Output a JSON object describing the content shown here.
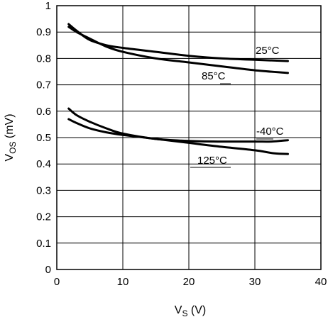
{
  "chart_data": {
    "type": "line",
    "xlabel": {
      "main": "V",
      "sub": "S",
      "unit": " (V)"
    },
    "ylabel": {
      "main": "V",
      "sub": "OS",
      "unit": " (mV)"
    },
    "xlim": [
      0,
      40
    ],
    "ylim": [
      0,
      1
    ],
    "xticks": [
      0,
      10,
      20,
      30,
      40
    ],
    "yticks": [
      0,
      0.1,
      0.2,
      0.3,
      0.4,
      0.5,
      0.6,
      0.7,
      0.8,
      0.9,
      1
    ],
    "ytick_labels": [
      "0",
      "0.1",
      "0.2",
      "0.3",
      "0.4",
      "0.5",
      "0.6",
      "0.7",
      "0.8",
      "0.9",
      "1"
    ],
    "xtick_labels": [
      "0",
      "10",
      "20",
      "30",
      "40"
    ],
    "grid": true,
    "series": [
      {
        "name": "25°C",
        "x": [
          1.8,
          3,
          5,
          7.5,
          10,
          15,
          20,
          25,
          30,
          35
        ],
        "y": [
          0.93,
          0.905,
          0.87,
          0.85,
          0.84,
          0.825,
          0.81,
          0.8,
          0.795,
          0.79
        ]
      },
      {
        "name": "85°C",
        "x": [
          1.8,
          3,
          5,
          7.5,
          10,
          15,
          20,
          25,
          30,
          35
        ],
        "y": [
          0.92,
          0.9,
          0.875,
          0.845,
          0.825,
          0.8,
          0.785,
          0.77,
          0.755,
          0.745
        ]
      },
      {
        "name": "-40°C",
        "x": [
          1.8,
          3,
          5,
          7.5,
          10,
          15,
          20,
          25,
          30,
          32.5,
          35
        ],
        "y": [
          0.61,
          0.585,
          0.56,
          0.535,
          0.515,
          0.495,
          0.487,
          0.485,
          0.485,
          0.485,
          0.49
        ]
      },
      {
        "name": "125°C",
        "x": [
          1.8,
          3,
          5,
          7.5,
          10,
          15,
          20,
          25,
          30,
          33,
          35
        ],
        "y": [
          0.57,
          0.555,
          0.535,
          0.52,
          0.51,
          0.495,
          0.48,
          0.465,
          0.452,
          0.44,
          0.438
        ]
      }
    ]
  }
}
